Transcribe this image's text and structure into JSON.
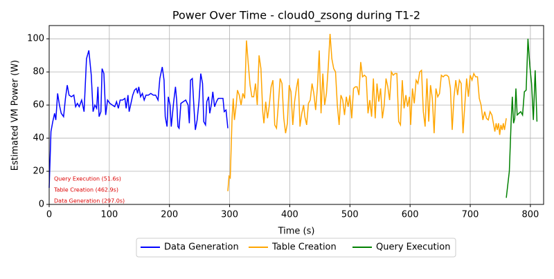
{
  "chart_data": {
    "type": "line",
    "title": "Power Over Time - cloud0_zsong during T1-2",
    "x_label": "Time (s)",
    "y_label": "Estimated VM Power (W)",
    "xlim": [
      0,
      822
    ],
    "ylim": [
      0,
      108
    ],
    "xticks": [
      0,
      100,
      200,
      300,
      400,
      500,
      600,
      700,
      800
    ],
    "yticks": [
      0,
      20,
      40,
      60,
      80,
      100
    ],
    "grid": true,
    "legend": "lower center outside",
    "annotations": [
      "Query Execution (51.6s)",
      "Table Creation (462.9s)",
      "Data Generation (297.0s)"
    ],
    "annotation_color": "#dd0000",
    "series": [
      {
        "name": "Data Generation",
        "color": "#0000ff",
        "x": [
          0,
          3,
          6,
          9,
          11,
          14,
          17,
          20,
          24,
          27,
          30,
          33,
          37,
          41,
          44,
          47,
          50,
          54,
          58,
          62,
          66,
          70,
          73,
          76,
          79,
          81,
          83,
          86,
          88,
          91,
          94,
          97,
          101,
          105,
          109,
          112,
          115,
          118,
          122,
          126,
          128,
          131,
          133,
          136,
          139,
          142,
          145,
          147,
          149,
          152,
          155,
          158,
          161,
          165,
          169,
          173,
          177,
          181,
          184,
          188,
          191,
          193,
          196,
          198,
          201,
          203,
          207,
          210,
          212,
          214,
          216,
          219,
          223,
          227,
          231,
          233,
          235,
          238,
          241,
          243,
          246,
          249,
          252,
          255,
          257,
          260,
          262,
          265,
          267,
          270,
          272,
          275,
          278,
          281,
          285,
          289,
          291,
          294,
          297
        ],
        "values": [
          10,
          44,
          50,
          55,
          51,
          67,
          60,
          55,
          53,
          64,
          72,
          66,
          65,
          66,
          59,
          61,
          59,
          63,
          56,
          88,
          93,
          78,
          56,
          60,
          58,
          71,
          53,
          56,
          82,
          79,
          54,
          63,
          61,
          60,
          59,
          62,
          58,
          63,
          63,
          64,
          58,
          66,
          56,
          61,
          66,
          69,
          70,
          67,
          71,
          65,
          67,
          63,
          66,
          66,
          67,
          66,
          66,
          63,
          76,
          83,
          75,
          53,
          47,
          65,
          60,
          47,
          62,
          71,
          63,
          47,
          46,
          61,
          62,
          63,
          60,
          49,
          75,
          76,
          57,
          45,
          51,
          62,
          79,
          73,
          50,
          48,
          62,
          65,
          55,
          61,
          68,
          59,
          62,
          64,
          64,
          64,
          56,
          57,
          46
        ]
      },
      {
        "name": "Table Creation",
        "color": "#ffa500",
        "x": [
          297,
          299,
          301,
          304,
          306,
          308,
          311,
          313,
          316,
          319,
          322,
          325,
          328,
          331,
          334,
          337,
          340,
          343,
          346,
          349,
          352,
          355,
          357,
          360,
          363,
          366,
          369,
          372,
          375,
          378,
          381,
          384,
          387,
          390,
          393,
          396,
          399,
          402,
          405,
          408,
          411,
          414,
          417,
          420,
          423,
          425,
          428,
          431,
          434,
          437,
          440,
          443,
          446,
          449,
          452,
          455,
          458,
          461,
          464,
          467,
          470,
          473,
          476,
          479,
          482,
          485,
          488,
          491,
          494,
          497,
          500,
          503,
          506,
          509,
          512,
          515,
          518,
          521,
          524,
          527,
          530,
          533,
          536,
          539,
          542,
          545,
          548,
          551,
          554,
          557,
          560,
          563,
          566,
          569,
          572,
          575,
          578,
          581,
          584,
          587,
          590,
          593,
          596,
          599,
          601,
          604,
          607,
          610,
          613,
          616,
          619,
          622,
          625,
          628,
          631,
          634,
          637,
          640,
          643,
          646,
          649,
          652,
          655,
          658,
          661,
          664,
          667,
          670,
          673,
          676,
          679,
          682,
          685,
          688,
          691,
          694,
          697,
          700,
          703,
          706,
          709,
          712,
          715,
          718,
          721,
          724,
          727,
          730,
          733,
          736,
          739,
          741,
          743,
          745,
          747,
          749,
          751,
          753,
          755,
          757,
          760
        ],
        "values": [
          8,
          17,
          16,
          52,
          64,
          51,
          60,
          69,
          66,
          60,
          67,
          64,
          99,
          85,
          72,
          65,
          65,
          73,
          60,
          90,
          82,
          56,
          49,
          62,
          52,
          60,
          71,
          75,
          48,
          46,
          60,
          76,
          73,
          52,
          43,
          49,
          72,
          68,
          48,
          62,
          70,
          76,
          47,
          55,
          60,
          53,
          48,
          61,
          63,
          73,
          67,
          57,
          71,
          93,
          55,
          79,
          60,
          67,
          83,
          103,
          88,
          82,
          80,
          60,
          48,
          66,
          63,
          54,
          65,
          59,
          66,
          52,
          70,
          71,
          71,
          66,
          86,
          77,
          78,
          77,
          55,
          63,
          53,
          76,
          52,
          73,
          62,
          70,
          52,
          60,
          76,
          71,
          63,
          80,
          78,
          79,
          79,
          50,
          48,
          75,
          58,
          66,
          59,
          65,
          48,
          70,
          61,
          75,
          73,
          80,
          81,
          56,
          47,
          76,
          50,
          72,
          64,
          43,
          70,
          65,
          67,
          78,
          77,
          78,
          78,
          77,
          70,
          45,
          65,
          75,
          66,
          75,
          73,
          43,
          60,
          76,
          65,
          78,
          75,
          79,
          77,
          77,
          64,
          60,
          51,
          56,
          52,
          51,
          56,
          54,
          48,
          44,
          49,
          45,
          49,
          42,
          48,
          45,
          49,
          45,
          52
        ]
      },
      {
        "name": "Query Execution",
        "color": "#008000",
        "x": [
          760,
          765,
          768,
          770,
          772,
          774,
          776,
          778,
          781,
          784,
          787,
          790,
          793,
          796,
          799,
          802,
          805,
          808,
          811
        ],
        "values": [
          4,
          20,
          50,
          65,
          49,
          52,
          70,
          54,
          55,
          56,
          54,
          68,
          69,
          100,
          84,
          73,
          51,
          81,
          50
        ]
      }
    ]
  }
}
